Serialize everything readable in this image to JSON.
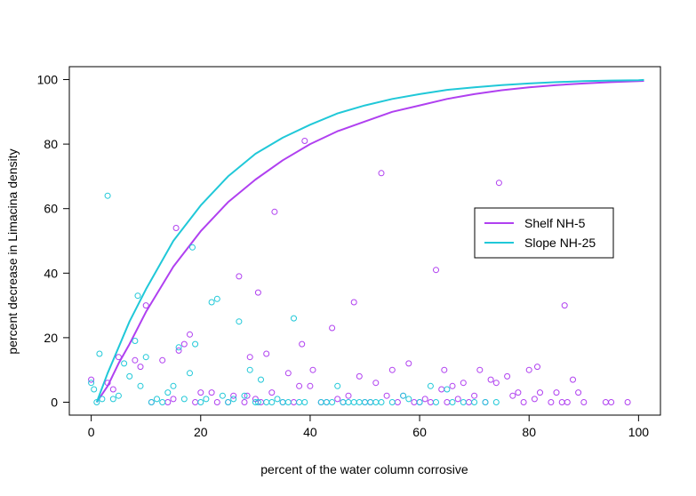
{
  "chart_data": {
    "type": "scatter",
    "xlabel": "percent of the water column corrosive",
    "ylabel": "percent decrease in Limacina density",
    "xlim": [
      -4,
      104
    ],
    "ylim": [
      -4,
      104
    ],
    "x_ticks": [
      0,
      20,
      40,
      60,
      80,
      100
    ],
    "y_ticks": [
      0,
      20,
      40,
      60,
      80,
      100
    ],
    "grid": false,
    "legend_position": "right",
    "series": [
      {
        "name": "Shelf NH-5",
        "color": "#b040f0",
        "curve": [
          [
            1,
            0
          ],
          [
            3,
            5
          ],
          [
            5,
            12
          ],
          [
            7,
            18
          ],
          [
            10,
            28
          ],
          [
            15,
            42
          ],
          [
            20,
            53
          ],
          [
            25,
            62
          ],
          [
            30,
            69
          ],
          [
            35,
            75
          ],
          [
            40,
            80
          ],
          [
            45,
            84
          ],
          [
            50,
            87
          ],
          [
            55,
            90
          ],
          [
            60,
            92
          ],
          [
            65,
            94
          ],
          [
            70,
            95.5
          ],
          [
            75,
            96.7
          ],
          [
            80,
            97.6
          ],
          [
            85,
            98.3
          ],
          [
            90,
            98.8
          ],
          [
            95,
            99.2
          ],
          [
            100,
            99.5
          ],
          [
            101,
            99.6
          ]
        ],
        "points": [
          [
            0,
            7
          ],
          [
            3,
            6
          ],
          [
            4,
            4
          ],
          [
            5,
            14
          ],
          [
            8,
            13
          ],
          [
            9,
            11
          ],
          [
            10,
            30
          ],
          [
            11,
            0
          ],
          [
            13,
            13
          ],
          [
            14,
            0
          ],
          [
            15,
            1
          ],
          [
            15.5,
            54
          ],
          [
            16,
            16
          ],
          [
            17,
            18
          ],
          [
            18,
            21
          ],
          [
            19,
            0
          ],
          [
            20,
            3
          ],
          [
            22,
            3
          ],
          [
            23,
            0
          ],
          [
            25,
            0
          ],
          [
            26,
            2
          ],
          [
            27,
            39
          ],
          [
            28,
            0
          ],
          [
            28.5,
            2
          ],
          [
            29,
            14
          ],
          [
            30,
            1
          ],
          [
            30.5,
            34
          ],
          [
            31,
            0
          ],
          [
            32,
            15
          ],
          [
            33,
            3
          ],
          [
            33.5,
            59
          ],
          [
            35,
            0
          ],
          [
            36,
            9
          ],
          [
            37,
            0
          ],
          [
            38,
            5
          ],
          [
            38.5,
            18
          ],
          [
            39,
            81
          ],
          [
            40,
            5
          ],
          [
            40.5,
            10
          ],
          [
            42,
            0
          ],
          [
            43,
            0
          ],
          [
            44,
            23
          ],
          [
            45,
            1
          ],
          [
            46,
            0
          ],
          [
            47,
            2
          ],
          [
            48,
            31
          ],
          [
            49,
            8
          ],
          [
            50,
            0
          ],
          [
            51,
            0
          ],
          [
            52,
            6
          ],
          [
            53,
            71
          ],
          [
            54,
            2
          ],
          [
            55,
            10
          ],
          [
            56,
            0
          ],
          [
            57,
            2
          ],
          [
            58,
            12
          ],
          [
            59,
            0
          ],
          [
            60,
            0
          ],
          [
            61,
            1
          ],
          [
            62,
            0
          ],
          [
            63,
            41
          ],
          [
            64,
            4
          ],
          [
            64.5,
            10
          ],
          [
            65,
            0
          ],
          [
            66,
            5
          ],
          [
            67,
            1
          ],
          [
            68,
            6
          ],
          [
            69,
            0
          ],
          [
            70,
            2
          ],
          [
            71,
            10
          ],
          [
            72,
            0
          ],
          [
            73,
            7
          ],
          [
            74,
            6
          ],
          [
            74.5,
            68
          ],
          [
            76,
            8
          ],
          [
            77,
            2
          ],
          [
            78,
            3
          ],
          [
            79,
            0
          ],
          [
            80,
            10
          ],
          [
            81,
            1
          ],
          [
            81.5,
            11
          ],
          [
            82,
            3
          ],
          [
            84,
            0
          ],
          [
            85,
            3
          ],
          [
            86,
            0
          ],
          [
            86.5,
            30
          ],
          [
            87,
            0
          ],
          [
            88,
            7
          ],
          [
            89,
            3
          ],
          [
            90,
            0
          ],
          [
            94,
            0
          ],
          [
            95,
            0
          ],
          [
            98,
            0
          ]
        ]
      },
      {
        "name": "Slope NH-25",
        "color": "#20c8d8",
        "curve": [
          [
            1,
            0
          ],
          [
            3,
            9
          ],
          [
            5,
            17
          ],
          [
            7,
            25
          ],
          [
            10,
            35
          ],
          [
            15,
            50
          ],
          [
            20,
            61
          ],
          [
            25,
            70
          ],
          [
            30,
            77
          ],
          [
            35,
            82
          ],
          [
            40,
            86
          ],
          [
            45,
            89.5
          ],
          [
            50,
            92
          ],
          [
            55,
            94
          ],
          [
            60,
            95.5
          ],
          [
            65,
            96.8
          ],
          [
            70,
            97.6
          ],
          [
            75,
            98.3
          ],
          [
            80,
            98.8
          ],
          [
            85,
            99.2
          ],
          [
            90,
            99.5
          ],
          [
            95,
            99.7
          ],
          [
            100,
            99.8
          ],
          [
            101,
            99.9
          ]
        ],
        "points": [
          [
            0,
            6
          ],
          [
            0.5,
            4
          ],
          [
            1,
            0
          ],
          [
            1.5,
            15
          ],
          [
            2,
            1
          ],
          [
            3,
            64
          ],
          [
            4,
            1
          ],
          [
            5,
            2
          ],
          [
            6,
            12
          ],
          [
            7,
            8
          ],
          [
            8,
            19
          ],
          [
            8.5,
            33
          ],
          [
            9,
            5
          ],
          [
            10,
            14
          ],
          [
            11,
            0
          ],
          [
            12,
            1
          ],
          [
            13,
            0
          ],
          [
            14,
            3
          ],
          [
            15,
            5
          ],
          [
            16,
            17
          ],
          [
            17,
            1
          ],
          [
            18,
            9
          ],
          [
            18.5,
            48
          ],
          [
            19,
            18
          ],
          [
            20,
            0
          ],
          [
            21,
            1
          ],
          [
            22,
            31
          ],
          [
            23,
            32
          ],
          [
            24,
            2
          ],
          [
            25,
            0
          ],
          [
            26,
            1
          ],
          [
            27,
            25
          ],
          [
            28,
            2
          ],
          [
            29,
            10
          ],
          [
            30,
            0
          ],
          [
            30.5,
            0
          ],
          [
            31,
            7
          ],
          [
            32,
            0
          ],
          [
            33,
            0
          ],
          [
            34,
            1
          ],
          [
            35,
            0
          ],
          [
            36,
            0
          ],
          [
            37,
            26
          ],
          [
            38,
            0
          ],
          [
            39,
            0
          ],
          [
            42,
            0
          ],
          [
            43,
            0
          ],
          [
            44,
            0
          ],
          [
            45,
            5
          ],
          [
            46,
            0
          ],
          [
            47,
            0
          ],
          [
            48,
            0
          ],
          [
            49,
            0
          ],
          [
            50,
            0
          ],
          [
            51,
            0
          ],
          [
            52,
            0
          ],
          [
            53,
            0
          ],
          [
            55,
            0
          ],
          [
            57,
            2
          ],
          [
            58,
            1
          ],
          [
            60,
            0
          ],
          [
            62,
            5
          ],
          [
            63,
            0
          ],
          [
            65,
            4
          ],
          [
            66,
            0
          ],
          [
            68,
            0
          ],
          [
            70,
            0
          ],
          [
            72,
            0
          ],
          [
            74,
            0
          ]
        ]
      }
    ]
  }
}
